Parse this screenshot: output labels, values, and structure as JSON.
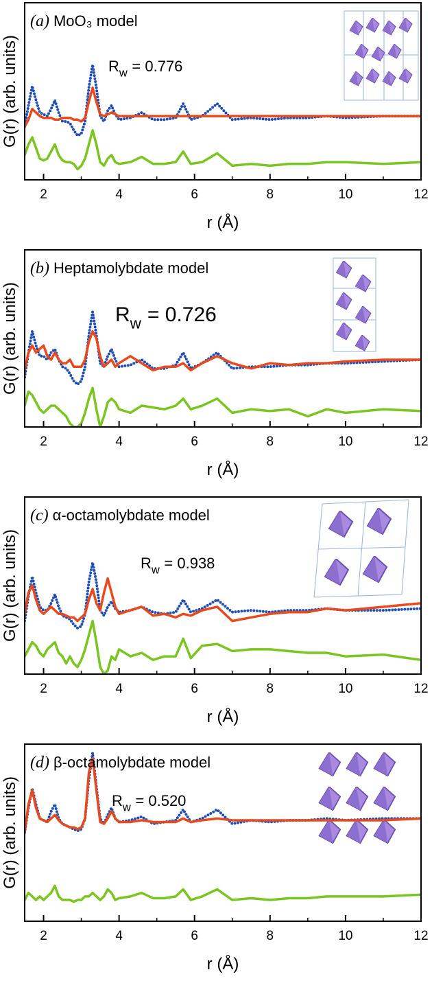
{
  "chart_data": [
    {
      "type": "line",
      "label": "(a)",
      "title": "MoO₃ model",
      "annotation": {
        "symbol": "R",
        "subscript": "w",
        "text": "= 0.776"
      },
      "xlabel": "r (Å)",
      "ylabel": "G(r) (arb. units)",
      "xlim": [
        1.5,
        12
      ],
      "xticks": [
        2,
        4,
        6,
        8,
        10,
        12
      ],
      "xminorticks": [
        3,
        5,
        7,
        9,
        11
      ],
      "ylim": [
        0,
        100
      ],
      "x": [
        1.5,
        1.6,
        1.7,
        1.8,
        1.9,
        2.0,
        2.1,
        2.2,
        2.3,
        2.4,
        2.5,
        2.6,
        2.7,
        2.8,
        2.9,
        3.0,
        3.1,
        3.2,
        3.3,
        3.4,
        3.5,
        3.6,
        3.7,
        3.8,
        3.9,
        4.0,
        4.3,
        4.6,
        4.9,
        5.2,
        5.5,
        5.7,
        5.9,
        6.2,
        6.6,
        7.0,
        7.5,
        8.0,
        8.5,
        9.0,
        9.5,
        10.0,
        11.0,
        12.0
      ],
      "series": [
        {
          "color": "#1f4fb5",
          "style": "dots",
          "values": [
            30,
            42,
            53,
            45,
            38,
            37,
            36,
            40,
            45,
            38,
            33,
            33,
            32,
            28,
            25,
            26,
            33,
            52,
            65,
            52,
            36,
            33,
            39,
            42,
            37,
            34,
            35,
            38,
            34,
            34,
            35,
            43,
            34,
            36,
            43,
            34,
            35,
            34,
            35,
            35,
            36,
            35,
            36,
            36
          ]
        },
        {
          "color": "#e8491d",
          "style": "line",
          "values": [
            30,
            34,
            40,
            38,
            36,
            35,
            35,
            35,
            34,
            34,
            35,
            35,
            35,
            34,
            34,
            33,
            35,
            44,
            52,
            44,
            37,
            36,
            37,
            38,
            37,
            36,
            36,
            36,
            36,
            36,
            36,
            36,
            36,
            36,
            36,
            36,
            36,
            36,
            36,
            36,
            36,
            36,
            36,
            36
          ]
        },
        {
          "color": "#7ac520",
          "style": "line",
          "values": [
            14,
            20,
            24,
            18,
            12,
            11,
            12,
            16,
            20,
            14,
            11,
            10,
            10,
            9,
            6,
            8,
            12,
            20,
            28,
            20,
            10,
            8,
            12,
            14,
            10,
            9,
            10,
            13,
            9,
            9,
            10,
            16,
            9,
            10,
            15,
            8,
            9,
            8,
            9,
            9,
            10,
            10,
            9,
            10
          ]
        }
      ]
    },
    {
      "type": "line",
      "label": "(b)",
      "title": "Heptamolybdate model",
      "annotation": {
        "symbol": "R",
        "subscript": "w",
        "text": "= 0.726"
      },
      "xlabel": "r (Å)",
      "ylabel": "G(r) (arb. units)",
      "xlim": [
        1.5,
        12
      ],
      "xticks": [
        2,
        4,
        6,
        8,
        10,
        12
      ],
      "xminorticks": [
        3,
        5,
        7,
        9,
        11
      ],
      "ylim": [
        0,
        100
      ],
      "x": [
        1.5,
        1.6,
        1.7,
        1.8,
        1.9,
        2.0,
        2.1,
        2.2,
        2.3,
        2.4,
        2.5,
        2.6,
        2.7,
        2.8,
        2.9,
        3.0,
        3.1,
        3.2,
        3.3,
        3.4,
        3.5,
        3.6,
        3.7,
        3.8,
        3.9,
        4.0,
        4.3,
        4.6,
        4.9,
        5.2,
        5.5,
        5.7,
        5.9,
        6.2,
        6.6,
        7.0,
        7.5,
        8.0,
        8.5,
        9.0,
        9.5,
        10.0,
        11.0,
        12.0
      ],
      "series": [
        {
          "color": "#1f4fb5",
          "style": "dots",
          "values": [
            28,
            42,
            54,
            46,
            40,
            40,
            38,
            42,
            44,
            38,
            34,
            33,
            30,
            26,
            24,
            26,
            34,
            52,
            65,
            52,
            36,
            34,
            40,
            44,
            38,
            34,
            35,
            38,
            33,
            33,
            35,
            42,
            33,
            36,
            42,
            33,
            34,
            34,
            35,
            35,
            36,
            36,
            37,
            38
          ]
        },
        {
          "color": "#e8491d",
          "style": "line",
          "values": [
            32,
            42,
            46,
            42,
            44,
            46,
            40,
            38,
            42,
            38,
            36,
            36,
            38,
            34,
            34,
            34,
            38,
            48,
            54,
            50,
            40,
            34,
            36,
            38,
            34,
            36,
            40,
            36,
            32,
            34,
            34,
            36,
            32,
            36,
            40,
            36,
            33,
            36,
            35,
            36,
            36,
            37,
            38,
            38
          ]
        },
        {
          "color": "#7ac520",
          "style": "line",
          "values": [
            12,
            20,
            18,
            14,
            10,
            8,
            10,
            12,
            12,
            10,
            8,
            6,
            2,
            0,
            0,
            2,
            8,
            16,
            22,
            10,
            0,
            6,
            14,
            16,
            14,
            10,
            8,
            12,
            11,
            10,
            12,
            16,
            10,
            12,
            16,
            8,
            10,
            9,
            10,
            6,
            10,
            8,
            10,
            9
          ]
        }
      ]
    },
    {
      "type": "line",
      "label": "(c)",
      "title": "α-octamolybdate model",
      "annotation": {
        "symbol": "R",
        "subscript": "w",
        "text": "= 0.938"
      },
      "xlabel": "r (Å)",
      "ylabel": "G(r) (arb. units)",
      "xlim": [
        1.5,
        12
      ],
      "xticks": [
        2,
        4,
        6,
        8,
        10,
        12
      ],
      "xminorticks": [
        3,
        5,
        7,
        9,
        11
      ],
      "ylim": [
        0,
        100
      ],
      "x": [
        1.5,
        1.6,
        1.7,
        1.8,
        1.9,
        2.0,
        2.1,
        2.2,
        2.3,
        2.4,
        2.5,
        2.6,
        2.7,
        2.8,
        2.9,
        3.0,
        3.1,
        3.2,
        3.3,
        3.4,
        3.5,
        3.6,
        3.7,
        3.8,
        3.9,
        4.0,
        4.3,
        4.6,
        4.9,
        5.2,
        5.5,
        5.7,
        5.9,
        6.2,
        6.6,
        7.0,
        7.5,
        8.0,
        8.5,
        9.0,
        9.5,
        10.0,
        11.0,
        12.0
      ],
      "series": [
        {
          "color": "#1f4fb5",
          "style": "dots",
          "values": [
            30,
            44,
            55,
            46,
            38,
            36,
            36,
            40,
            45,
            38,
            33,
            32,
            31,
            28,
            26,
            27,
            34,
            52,
            63,
            52,
            36,
            33,
            38,
            41,
            37,
            35,
            36,
            38,
            35,
            34,
            35,
            42,
            35,
            37,
            42,
            35,
            36,
            35,
            36,
            36,
            37,
            36,
            36,
            37
          ]
        },
        {
          "color": "#e8491d",
          "style": "line",
          "values": [
            34,
            46,
            50,
            42,
            36,
            34,
            36,
            38,
            36,
            34,
            34,
            33,
            32,
            32,
            30,
            32,
            34,
            42,
            48,
            40,
            36,
            46,
            54,
            46,
            38,
            34,
            36,
            38,
            33,
            34,
            32,
            34,
            33,
            36,
            38,
            30,
            32,
            34,
            35,
            35,
            37,
            36,
            38,
            40
          ]
        },
        {
          "color": "#7ac520",
          "style": "line",
          "values": [
            10,
            14,
            18,
            16,
            12,
            10,
            14,
            16,
            18,
            12,
            10,
            6,
            10,
            6,
            4,
            8,
            14,
            22,
            30,
            18,
            4,
            0,
            2,
            10,
            8,
            14,
            10,
            12,
            8,
            10,
            10,
            20,
            9,
            16,
            17,
            13,
            14,
            14,
            13,
            12,
            12,
            10,
            11,
            8
          ]
        }
      ]
    },
    {
      "type": "line",
      "label": "(d)",
      "title": "β-octamolybdate model",
      "annotation": {
        "symbol": "R",
        "subscript": "w",
        "text": "= 0.520"
      },
      "xlabel": "r (Å)",
      "ylabel": "G(r) (arb. units)",
      "xlim": [
        1.5,
        12
      ],
      "xticks": [
        2,
        4,
        6,
        8,
        10,
        12
      ],
      "xminorticks": [
        3,
        5,
        7,
        9,
        11
      ],
      "ylim": [
        0,
        100
      ],
      "x": [
        1.5,
        1.6,
        1.7,
        1.8,
        1.9,
        2.0,
        2.1,
        2.2,
        2.3,
        2.4,
        2.5,
        2.6,
        2.7,
        2.8,
        2.9,
        3.0,
        3.1,
        3.2,
        3.3,
        3.4,
        3.5,
        3.6,
        3.7,
        3.8,
        3.9,
        4.0,
        4.3,
        4.6,
        4.9,
        5.2,
        5.5,
        5.7,
        5.9,
        6.2,
        6.6,
        7.0,
        7.5,
        8.0,
        8.5,
        9.0,
        9.5,
        10.0,
        11.0,
        12.0
      ],
      "series": [
        {
          "color": "#1f4fb5",
          "style": "dots",
          "values": [
            50,
            64,
            75,
            66,
            58,
            57,
            56,
            62,
            66,
            58,
            55,
            54,
            53,
            52,
            51,
            52,
            58,
            80,
            95,
            76,
            58,
            55,
            60,
            64,
            58,
            56,
            57,
            59,
            55,
            56,
            57,
            63,
            56,
            58,
            63,
            55,
            57,
            56,
            57,
            57,
            58,
            57,
            58,
            58
          ]
        },
        {
          "color": "#e8491d",
          "style": "line",
          "values": [
            50,
            66,
            74,
            64,
            58,
            57,
            56,
            58,
            60,
            57,
            55,
            54,
            53,
            53,
            52,
            53,
            58,
            84,
            92,
            74,
            56,
            55,
            58,
            62,
            58,
            56,
            56,
            57,
            56,
            56,
            56,
            58,
            56,
            57,
            58,
            57,
            57,
            57,
            57,
            57,
            57,
            57,
            57,
            58
          ]
        },
        {
          "color": "#7ac520",
          "style": "line",
          "values": [
            12,
            16,
            14,
            12,
            14,
            12,
            14,
            16,
            20,
            14,
            12,
            12,
            12,
            11,
            12,
            12,
            14,
            14,
            16,
            14,
            12,
            14,
            18,
            16,
            12,
            13,
            14,
            16,
            13,
            13,
            14,
            18,
            12,
            14,
            18,
            12,
            13,
            12,
            13,
            13,
            14,
            14,
            14,
            15
          ]
        }
      ]
    }
  ]
}
